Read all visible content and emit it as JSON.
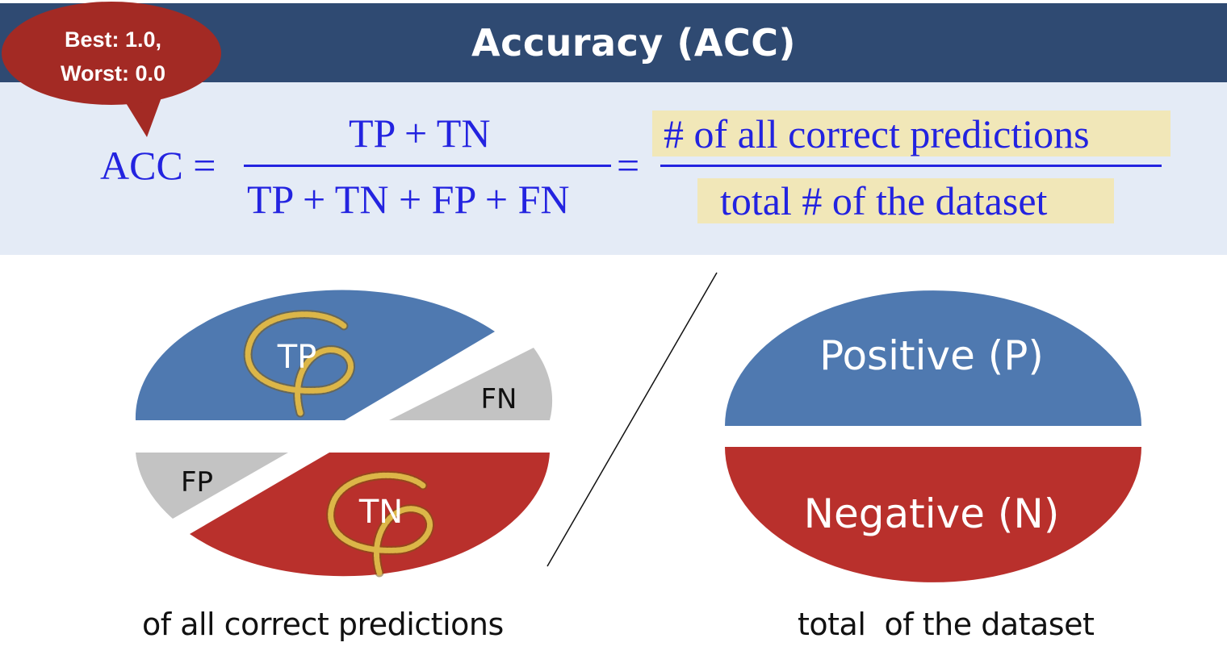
{
  "title": "Accuracy (ACC)",
  "callout": {
    "line1": "Best: 1.0,",
    "line2": "Worst: 0.0"
  },
  "formula": {
    "lhs": "ACC =",
    "numerator": "TP + TN",
    "denominator": "TP + TN + FP + FN",
    "equals": "=",
    "word_numerator": "# of all correct predictions",
    "word_denominator": "total # of the dataset"
  },
  "left_pie": {
    "tp_label": "TP",
    "fn_label": "FN",
    "fp_label": "FP",
    "tn_label": "TN",
    "caption": "of all correct predictions"
  },
  "right_pie": {
    "positive_label": "Positive (P)",
    "negative_label": "Negative (N)",
    "caption": "total  of the dataset"
  },
  "colors": {
    "header": "#2f4a72",
    "panel": "#e4ebf6",
    "formula_text": "#2323e0",
    "highlight": "#f1e7b8",
    "positive": "#4f79b0",
    "negative": "#b9302c",
    "gray": "#c3c3c3",
    "circle_mark": "#d9b040",
    "callout": "#a32a24"
  }
}
